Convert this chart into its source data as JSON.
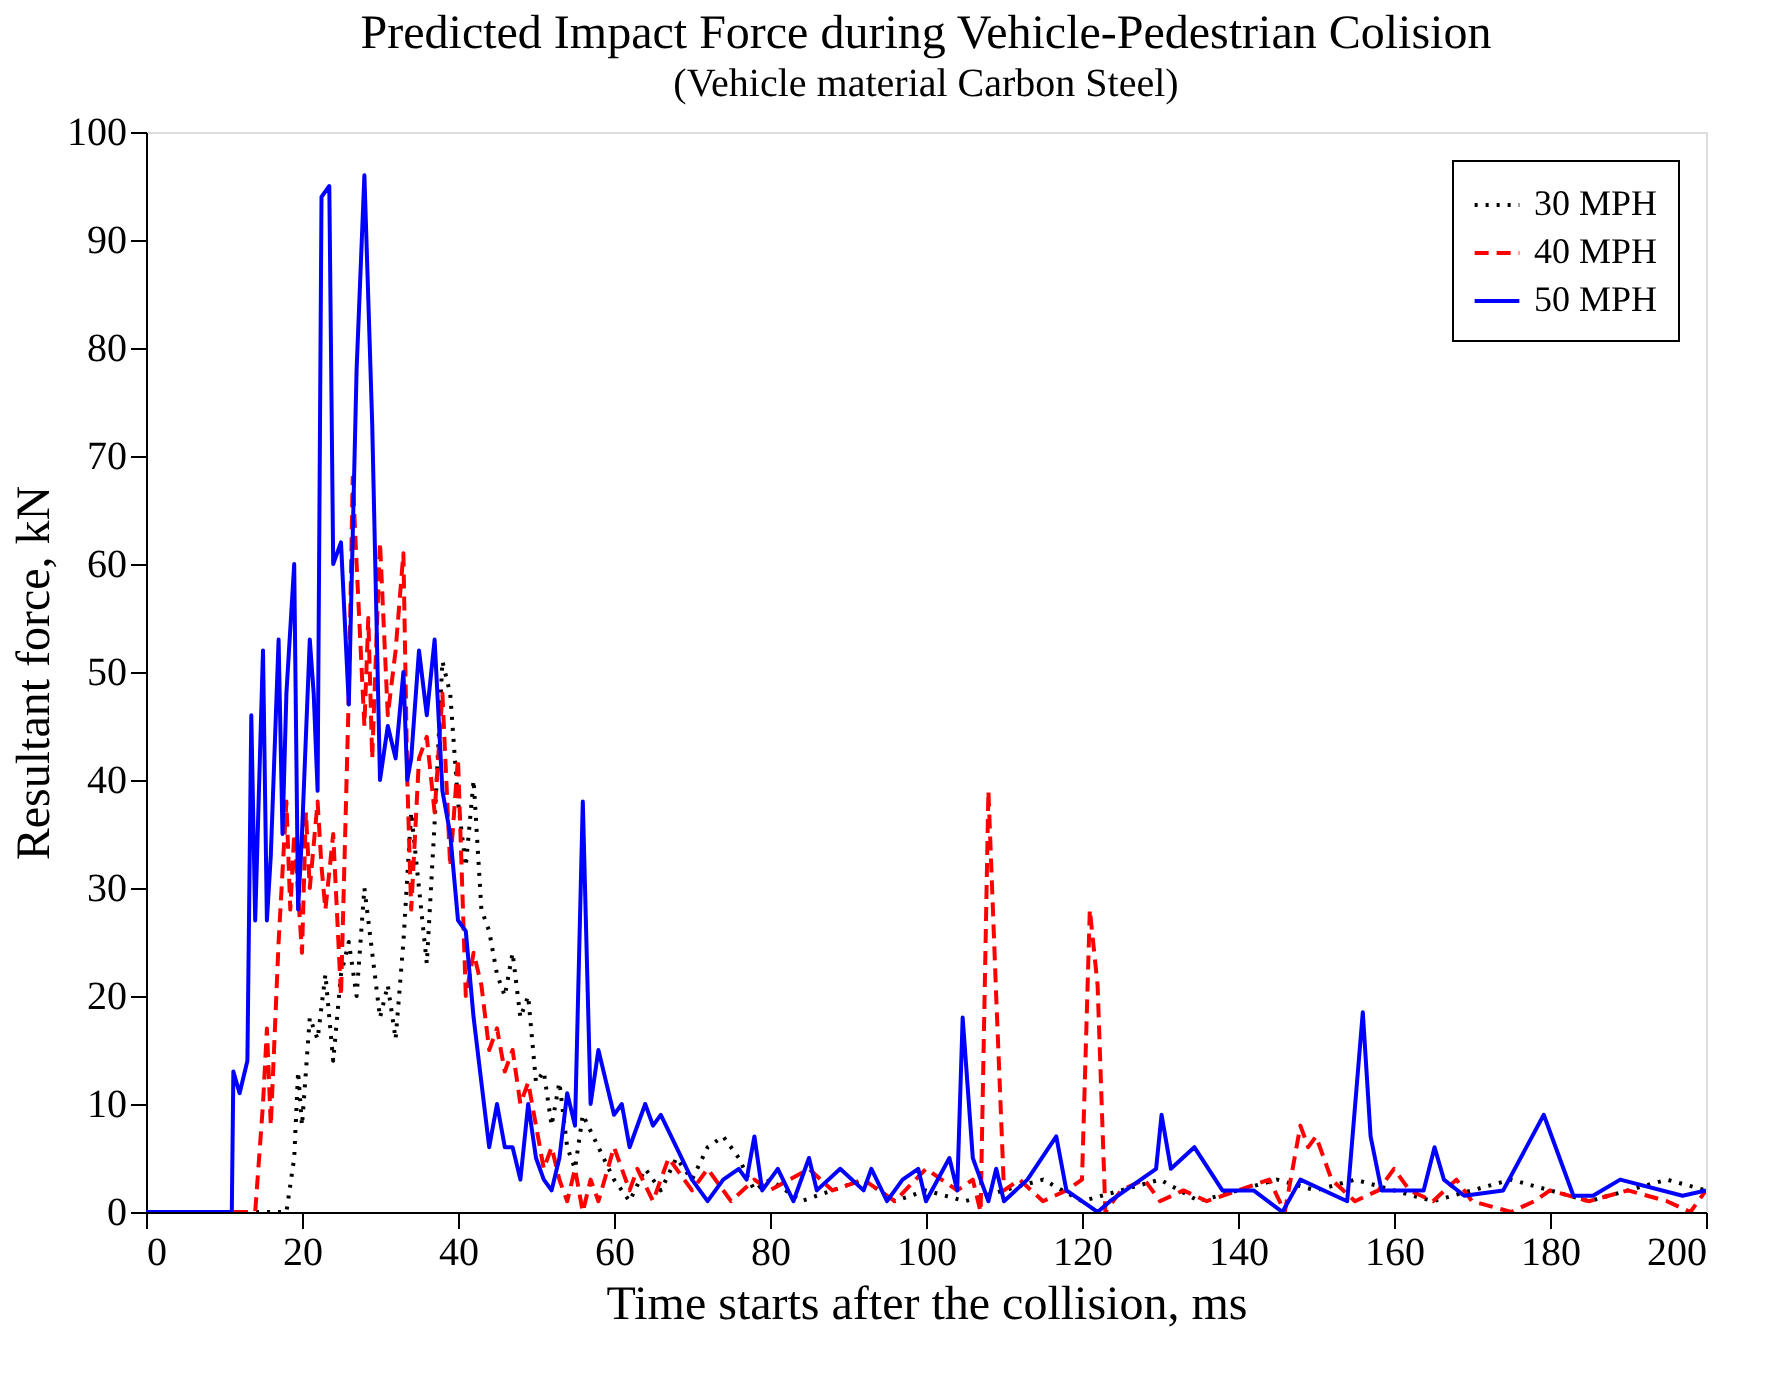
{
  "chart_data": {
    "type": "line",
    "title": "Predicted Impact Force during Vehicle-Pedestrian Colision",
    "subtitle": "(Vehicle material Carbon Steel)",
    "xlabel": "Time starts after the collision,  ms",
    "ylabel": "Resultant force, kN",
    "xlim": [
      0,
      200
    ],
    "ylim": [
      0,
      100
    ],
    "xticks": [
      0,
      20,
      40,
      60,
      80,
      100,
      120,
      140,
      160,
      180,
      200
    ],
    "yticks": [
      0,
      10,
      20,
      30,
      40,
      50,
      60,
      70,
      80,
      90,
      100
    ],
    "grid": false,
    "legend": "top right",
    "series": [
      {
        "name": "30 MPH",
        "color": "#000000",
        "line_style": "dotted",
        "x": [
          0,
          18,
          19,
          19.5,
          20,
          21,
          22,
          23,
          24,
          25,
          26,
          27,
          28,
          29,
          30,
          31,
          32,
          33,
          34,
          35,
          36,
          37,
          38,
          39,
          40,
          41,
          42,
          43,
          44,
          45,
          46,
          47,
          48,
          49,
          50,
          51,
          52,
          53,
          54,
          55,
          56,
          58,
          60,
          62,
          64,
          66,
          68,
          70,
          72,
          74,
          76,
          78,
          80,
          84,
          88,
          92,
          96,
          100,
          105,
          110,
          115,
          120,
          125,
          130,
          135,
          140,
          145,
          150,
          155,
          160,
          165,
          170,
          175,
          180,
          185,
          190,
          195,
          200
        ],
        "values": [
          0,
          0,
          5,
          13,
          8,
          18,
          16,
          22,
          14,
          22,
          25,
          20,
          30,
          24,
          18,
          21,
          16,
          25,
          37,
          30,
          23,
          36,
          51,
          48,
          38,
          32,
          40,
          28,
          26,
          22,
          20,
          24,
          18,
          20,
          12,
          13,
          8,
          12,
          6,
          4,
          9,
          6,
          3,
          1,
          4,
          2,
          5,
          3,
          6,
          7,
          5,
          2,
          3,
          1,
          2,
          3,
          1,
          2,
          1,
          2,
          3,
          1,
          2,
          3,
          1,
          2,
          3,
          2,
          3,
          2,
          1,
          2,
          3,
          2,
          1,
          2,
          3,
          2
        ]
      },
      {
        "name": "40 MPH",
        "color": "#ff0000",
        "line_style": "dashed",
        "x": [
          0,
          14,
          15,
          15.5,
          16,
          17,
          18,
          18.5,
          19,
          20,
          20.5,
          21,
          22,
          22.5,
          23,
          24,
          25,
          26,
          26.5,
          27,
          28,
          28.5,
          29,
          30,
          31,
          32,
          33,
          33.5,
          34,
          35,
          36,
          37,
          38,
          39,
          40,
          41,
          42,
          43,
          44,
          45,
          46,
          47,
          48,
          49,
          50,
          51,
          52,
          53,
          54,
          55,
          56,
          57,
          58,
          60,
          62,
          63,
          65,
          67,
          70,
          72,
          75,
          78,
          80,
          85,
          88,
          92,
          96,
          100,
          104,
          106,
          107,
          108,
          109,
          110,
          112,
          115,
          118,
          120,
          121,
          122,
          123,
          125,
          128,
          130,
          133,
          136,
          140,
          144,
          146,
          148,
          149,
          150,
          152,
          155,
          158,
          160,
          162,
          165,
          168,
          170,
          175,
          178,
          180,
          185,
          190,
          195,
          198,
          200
        ],
        "values": [
          0,
          0,
          10,
          17,
          8,
          25,
          38,
          28,
          35,
          24,
          37,
          30,
          38,
          32,
          28,
          35,
          20,
          48,
          68,
          60,
          45,
          55,
          42,
          62,
          46,
          52,
          61,
          40,
          28,
          42,
          44,
          37,
          48,
          32,
          42,
          20,
          24,
          21,
          15,
          17,
          13,
          15,
          10,
          12,
          8,
          4,
          6,
          3,
          1,
          4,
          0,
          3,
          1,
          6,
          2,
          4,
          1,
          5,
          2,
          4,
          1,
          3,
          2,
          4,
          2,
          3,
          1,
          4,
          2,
          3,
          0,
          39,
          20,
          2,
          3,
          1,
          2,
          3,
          28,
          21,
          0,
          2,
          3,
          1,
          2,
          1,
          2,
          3,
          0,
          8,
          6,
          7,
          3,
          1,
          2,
          4,
          2,
          1,
          3,
          1,
          0,
          1,
          2,
          1,
          2,
          1,
          0,
          2
        ]
      },
      {
        "name": "50 MPH",
        "color": "#0000ff",
        "line_style": "solid",
        "x": [
          0,
          11,
          11.2,
          12,
          13,
          13.5,
          14,
          15,
          15.5,
          16,
          17,
          17.5,
          18,
          19,
          19.5,
          20,
          21,
          21.5,
          22,
          22.5,
          23.5,
          24,
          25,
          26,
          27,
          28,
          29,
          30,
          31,
          32,
          33,
          33.5,
          34,
          35,
          36,
          37,
          38,
          39,
          40,
          41,
          42,
          43,
          44,
          45,
          46,
          47,
          48,
          49,
          50,
          51,
          52,
          53,
          54,
          55,
          56,
          57,
          58,
          59,
          60,
          61,
          62,
          64,
          65,
          66,
          68,
          70,
          72,
          74,
          76,
          77,
          78,
          79,
          81,
          83,
          85,
          86,
          89,
          92,
          93,
          95,
          97,
          99,
          100,
          103,
          104,
          104.7,
          106,
          107,
          108,
          109,
          110,
          113,
          116.7,
          118,
          120,
          122,
          123.6,
          129.5,
          130.2,
          131.4,
          134.4,
          138,
          142,
          145.7,
          148,
          154,
          156,
          157,
          158.4,
          163.8,
          165.2,
          166.4,
          169,
          174,
          179.2,
          183,
          185.5,
          189,
          197,
          200
        ],
        "values": [
          0,
          0,
          13,
          11,
          14,
          46,
          27,
          52,
          27,
          33,
          53,
          35,
          48,
          60,
          28,
          35,
          53,
          48,
          39,
          94,
          95,
          60,
          62,
          47,
          78,
          96,
          73,
          40,
          45,
          42,
          50,
          40,
          42,
          52,
          46,
          53,
          39,
          35,
          27,
          26,
          18,
          12,
          6,
          10,
          6,
          6,
          3,
          10,
          5,
          3,
          2,
          5,
          11,
          8,
          38,
          10,
          15,
          12,
          9,
          10,
          6,
          10,
          8,
          9,
          6,
          3,
          1,
          3,
          4,
          3,
          7,
          2,
          4,
          1,
          5,
          2,
          4,
          2,
          4,
          1,
          3,
          4,
          1,
          5,
          2,
          18,
          5,
          3,
          1,
          4,
          1,
          3,
          7,
          2,
          1,
          0,
          1,
          4,
          9,
          4,
          6,
          2,
          2,
          0,
          3,
          1,
          18.5,
          7,
          2,
          2,
          6,
          3,
          1.5,
          2,
          9,
          1.5,
          1.5,
          3,
          1.5,
          2
        ]
      }
    ]
  }
}
